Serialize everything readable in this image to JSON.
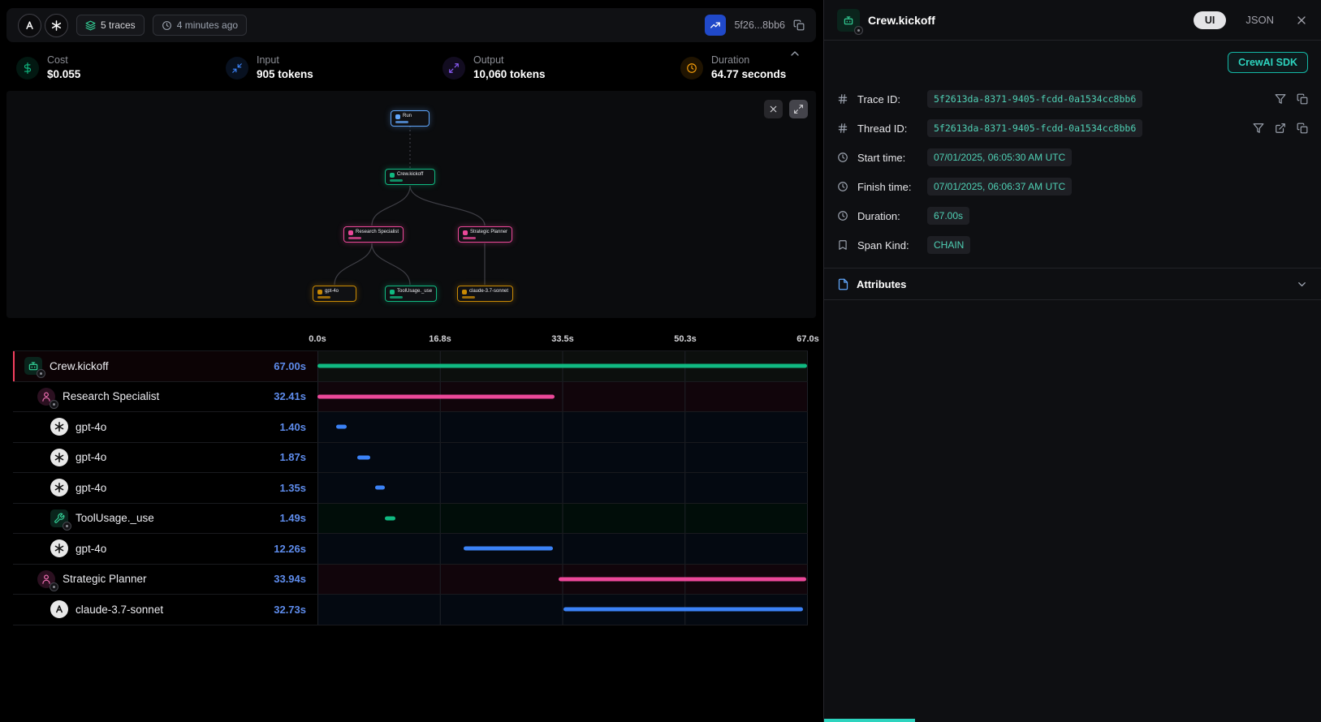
{
  "header": {
    "traces_badge": "5 traces",
    "age_badge": "4 minutes ago",
    "trace_short_id": "5f26...8bb6"
  },
  "stats": {
    "items": [
      {
        "label": "Cost",
        "value": "$0.055",
        "icon": "dollar",
        "color": "#10b981"
      },
      {
        "label": "Input",
        "value": "905 tokens",
        "icon": "input",
        "color": "#3b82f6"
      },
      {
        "label": "Output",
        "value": "10,060 tokens",
        "icon": "output",
        "color": "#8b5cf6"
      },
      {
        "label": "Duration",
        "value": "64.77 seconds",
        "icon": "duration",
        "color": "#f59e0b"
      }
    ]
  },
  "graph": {
    "nodes": [
      {
        "id": "run",
        "label": "Run",
        "color": "#60a5fa",
        "icon": "run-icon"
      },
      {
        "id": "crew",
        "label": "Crew.kickoff",
        "color": "#10b981",
        "icon": "crew-icon"
      },
      {
        "id": "research",
        "label": "Research Specialist",
        "color": "#ec4899",
        "icon": "agent-icon"
      },
      {
        "id": "strategic",
        "label": "Strategic Planner",
        "color": "#ec4899",
        "icon": "agent-icon"
      },
      {
        "id": "gpt",
        "label": "gpt-4o",
        "color": "#ca8a04",
        "icon": "openai-icon"
      },
      {
        "id": "tool",
        "label": "ToolUsage._use",
        "color": "#10b981",
        "icon": "tool-icon"
      },
      {
        "id": "claude",
        "label": "claude-3.7-sonnet",
        "color": "#ca8a04",
        "icon": "anthropic-icon"
      }
    ]
  },
  "timeline": {
    "total_seconds": 67,
    "ticks": [
      "0.0s",
      "16.8s",
      "33.5s",
      "50.3s",
      "67.0s"
    ],
    "rows": [
      {
        "label": "Crew.kickoff",
        "duration": "67.00s",
        "icon": "crew",
        "color": "#10b981",
        "start": 0,
        "seconds": 67,
        "indent": 0,
        "selected": true
      },
      {
        "label": "Research Specialist",
        "duration": "32.41s",
        "icon": "agent",
        "color": "#ec4899",
        "start": 0,
        "seconds": 32.41,
        "indent": 1
      },
      {
        "label": "gpt-4o",
        "duration": "1.40s",
        "icon": "openai",
        "color": "#3b82f6",
        "start": 2.55,
        "seconds": 1.4,
        "indent": 2
      },
      {
        "label": "gpt-4o",
        "duration": "1.87s",
        "icon": "openai",
        "color": "#3b82f6",
        "start": 5.4,
        "seconds": 1.87,
        "indent": 2
      },
      {
        "label": "gpt-4o",
        "duration": "1.35s",
        "icon": "openai",
        "color": "#3b82f6",
        "start": 7.9,
        "seconds": 1.35,
        "indent": 2
      },
      {
        "label": "ToolUsage._use",
        "duration": "1.49s",
        "icon": "tool",
        "color": "#10b981",
        "start": 9.2,
        "seconds": 1.49,
        "indent": 2
      },
      {
        "label": "gpt-4o",
        "duration": "12.26s",
        "icon": "openai",
        "color": "#3b82f6",
        "start": 20.0,
        "seconds": 12.26,
        "indent": 2
      },
      {
        "label": "Strategic Planner",
        "duration": "33.94s",
        "icon": "agent",
        "color": "#ec4899",
        "start": 33.0,
        "seconds": 33.94,
        "indent": 1
      },
      {
        "label": "claude-3.7-sonnet",
        "duration": "32.73s",
        "icon": "anthropic",
        "color": "#3b82f6",
        "start": 33.7,
        "seconds": 32.73,
        "indent": 2
      }
    ]
  },
  "detail": {
    "title": "Crew.kickoff",
    "tab_ui": "UI",
    "tab_json": "JSON",
    "sdk_badge": "CrewAI SDK",
    "fields": [
      {
        "icon": "hash",
        "label": "Trace ID:",
        "value": "5f2613da-8371-9405-fcdd-0a1534cc8bb6",
        "value_style": "id",
        "actions": [
          "filter",
          "copy"
        ]
      },
      {
        "icon": "hash",
        "label": "Thread ID:",
        "value": "5f2613da-8371-9405-fcdd-0a1534cc8bb6",
        "value_style": "id",
        "actions": [
          "filter",
          "external",
          "copy"
        ]
      },
      {
        "icon": "clock",
        "label": "Start time:",
        "value": "07/01/2025, 06:05:30 AM UTC",
        "actions": []
      },
      {
        "icon": "clock",
        "label": "Finish time:",
        "value": "07/01/2025, 06:06:37 AM UTC",
        "actions": []
      },
      {
        "icon": "clock",
        "label": "Duration:",
        "value": "67.00s",
        "actions": []
      },
      {
        "icon": "bookmark",
        "label": "Span Kind:",
        "value": "CHAIN",
        "actions": []
      }
    ],
    "attributes_label": "Attributes"
  }
}
